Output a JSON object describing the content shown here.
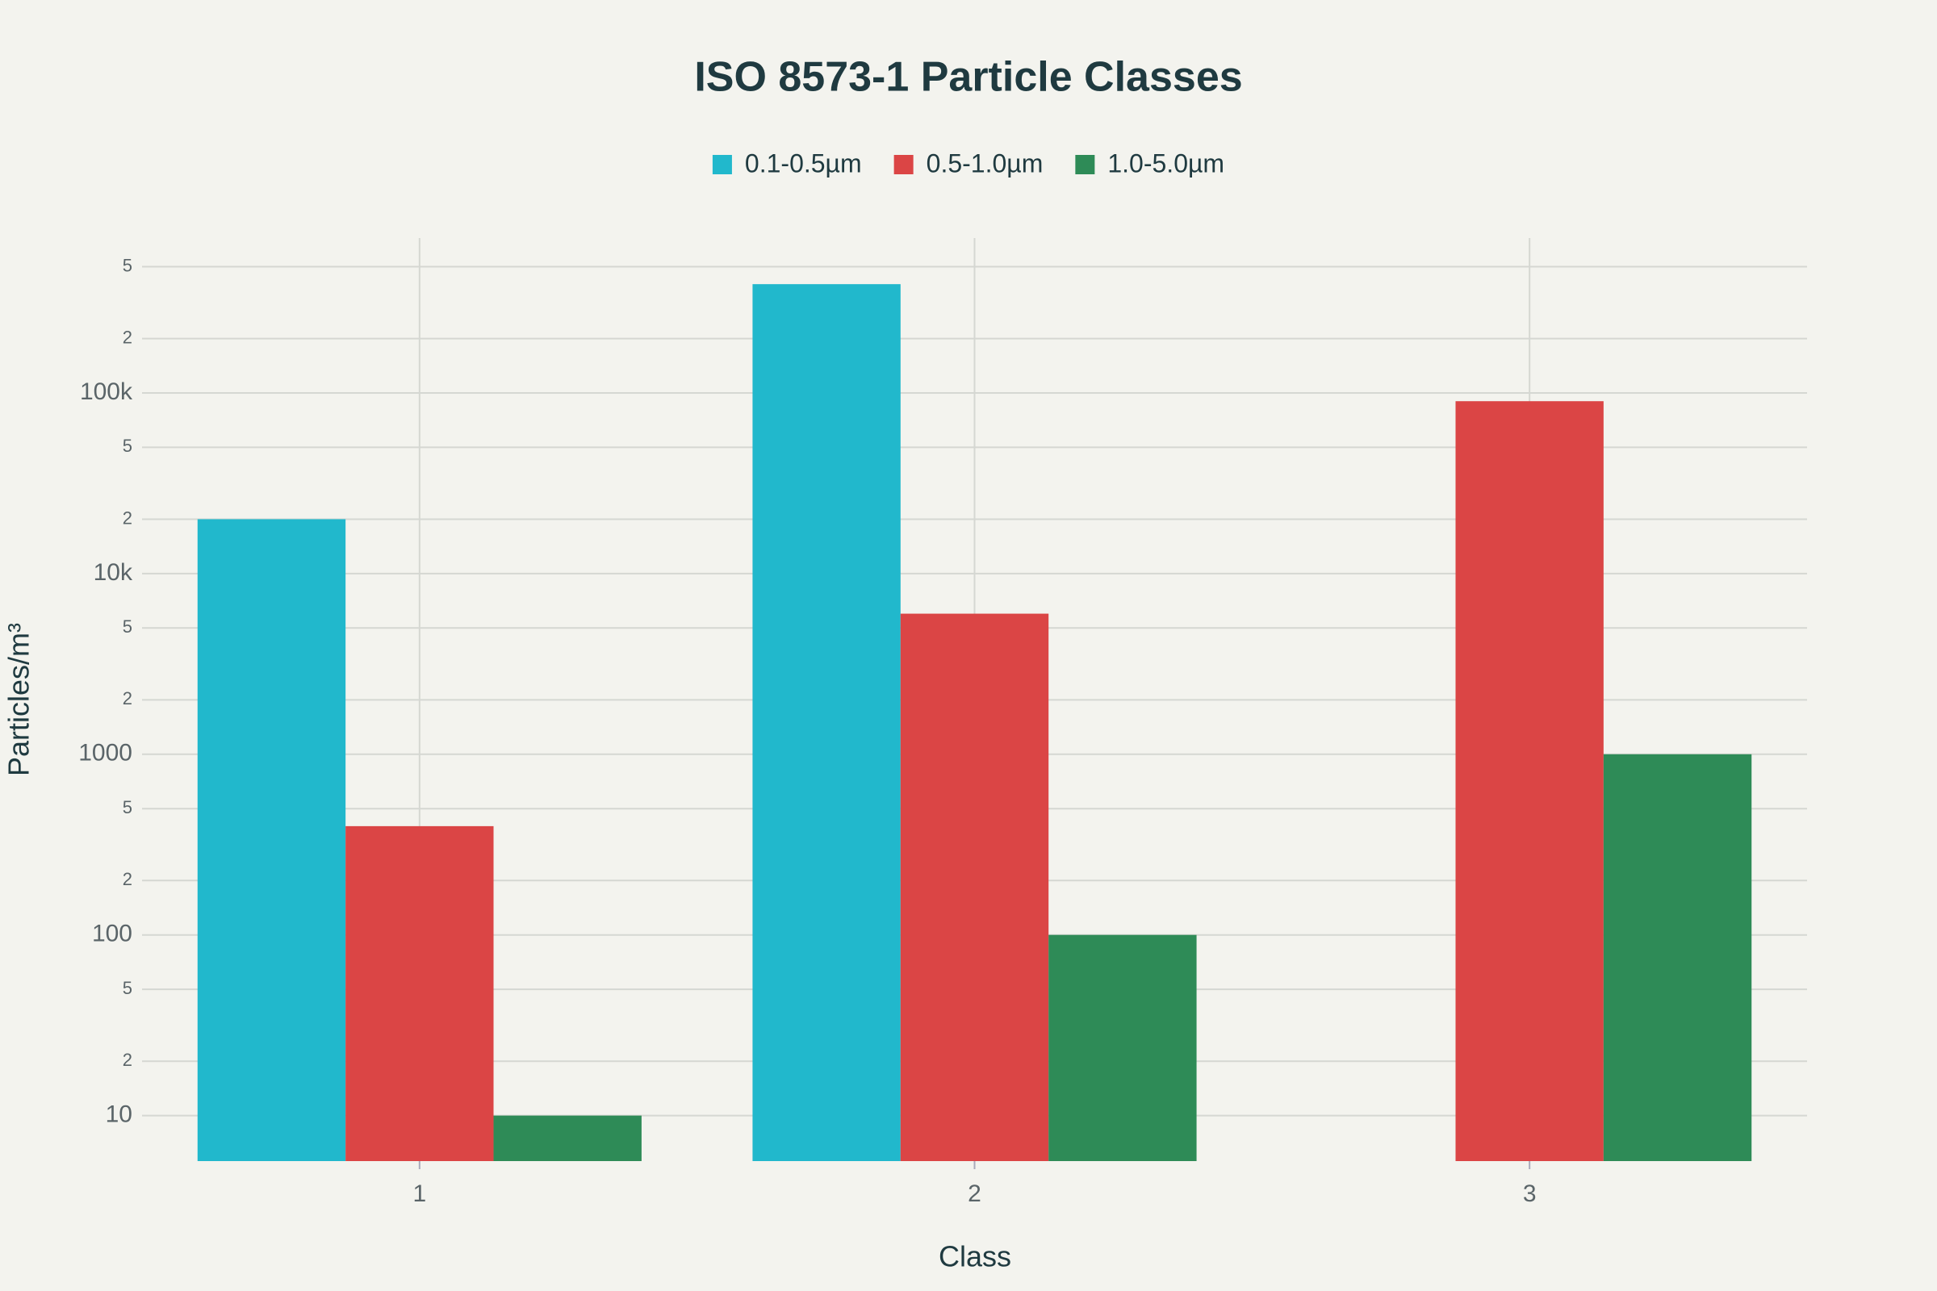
{
  "chart_data": {
    "type": "bar",
    "title": "ISO 8573-1 Particle Classes",
    "x_label": "Class",
    "y_label": "Particles/m³",
    "categories": [
      "1",
      "2",
      "3"
    ],
    "series": [
      {
        "name": "0.1-0.5µm",
        "color": "#21b8cc",
        "values": [
          20000,
          400000,
          null
        ]
      },
      {
        "name": "0.5-1.0µm",
        "color": "#db4545",
        "values": [
          400,
          6000,
          90000
        ]
      },
      {
        "name": "1.0-5.0µm",
        "color": "#2e8b57",
        "values": [
          10,
          100,
          1000
        ]
      }
    ],
    "log_y": true,
    "ylim": [
      5.6,
      720000
    ],
    "yticks": [
      10,
      {
        "value": 20,
        "label": "2"
      },
      {
        "value": 50,
        "label": "5"
      },
      100,
      {
        "value": 200,
        "label": "2"
      },
      {
        "value": 500,
        "label": "5"
      },
      1000,
      {
        "value": 2000,
        "label": "2"
      },
      {
        "value": 5000,
        "label": "5"
      },
      {
        "value": 10000,
        "label": "10k"
      },
      {
        "value": 20000,
        "label": "2"
      },
      {
        "value": 50000,
        "label": "5"
      },
      {
        "value": 100000,
        "label": "100k"
      },
      {
        "value": 200000,
        "label": "2"
      },
      {
        "value": 500000,
        "label": "5"
      }
    ],
    "grid": true,
    "legend": "top"
  }
}
